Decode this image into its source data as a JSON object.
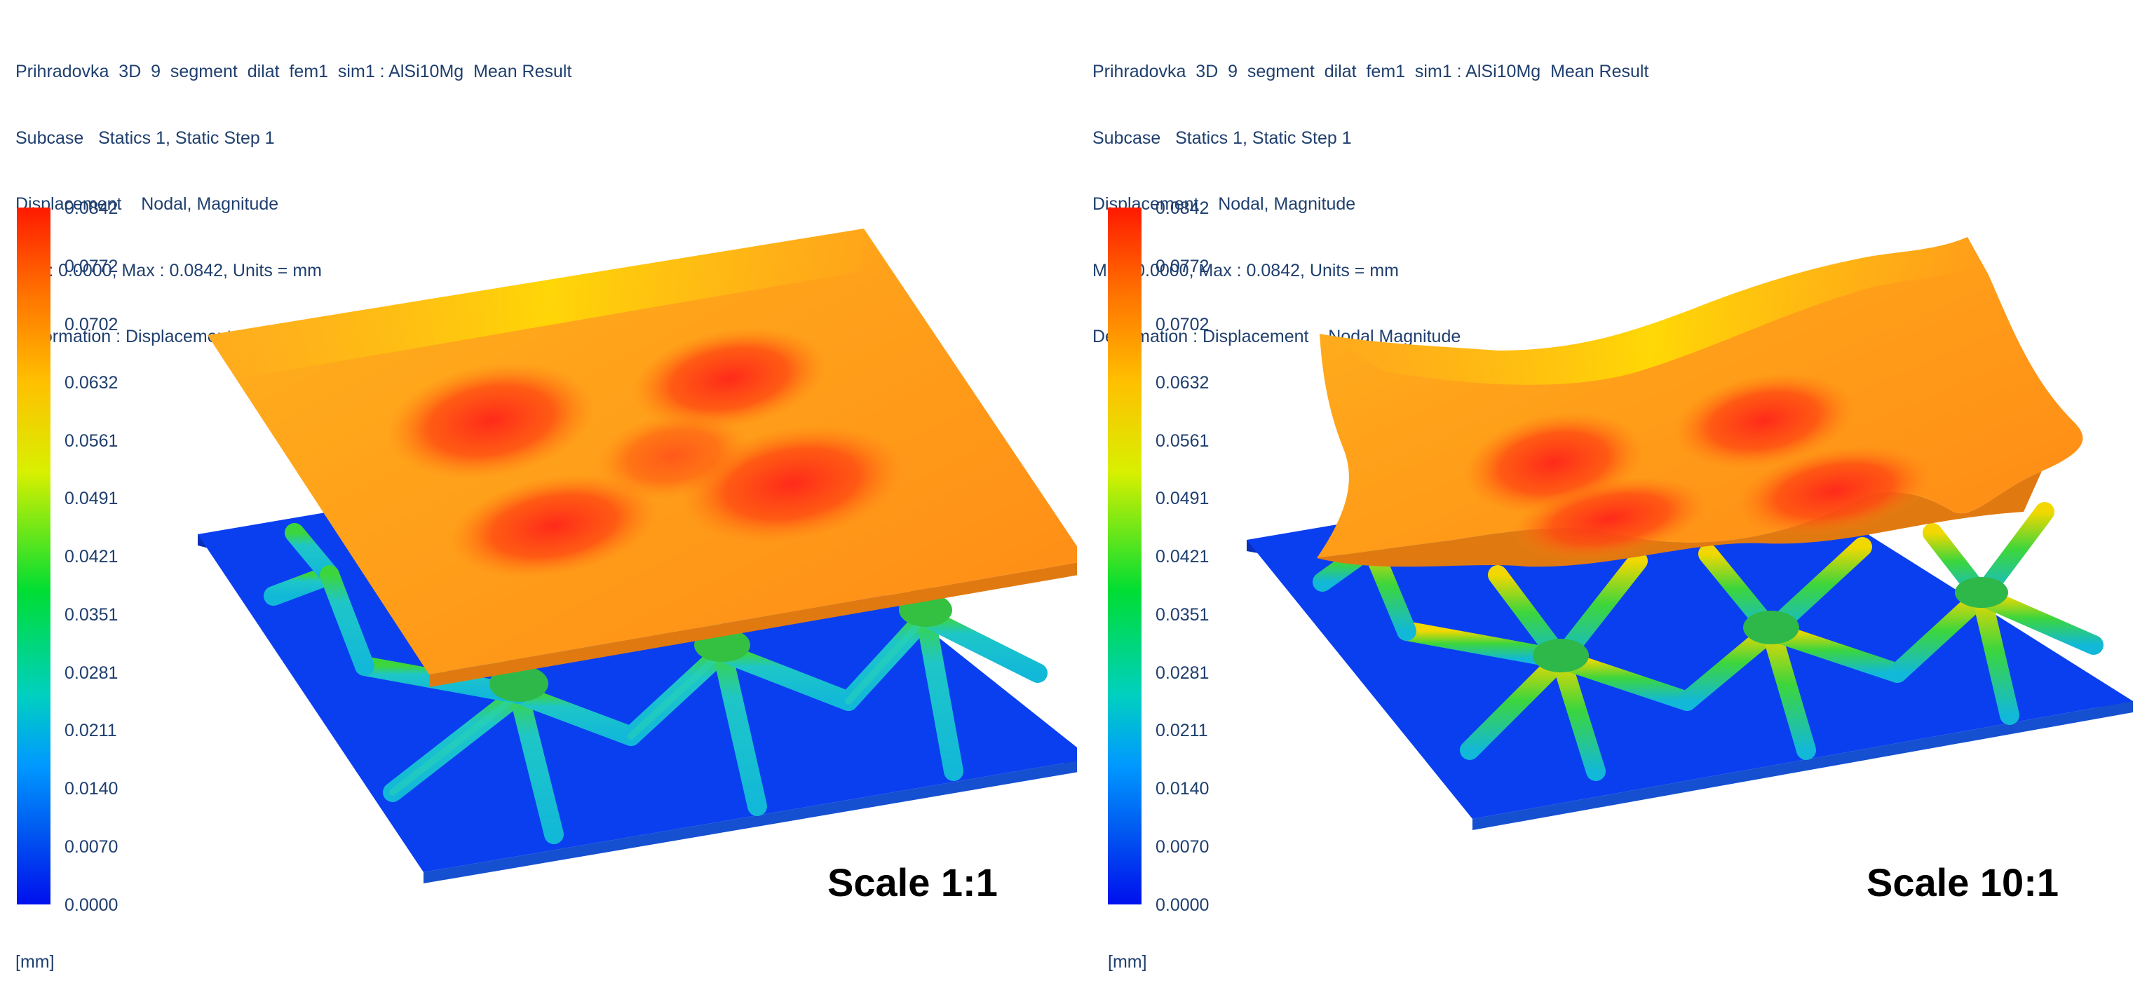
{
  "panels": [
    {
      "header_lines": [
        "Prihradovka  3D  9  segment  dilat  fem1  sim1 : AlSi10Mg  Mean Result",
        "Subcase   Statics 1, Static Step 1",
        "Displacement    Nodal, Magnitude",
        "Min : 0.0000, Max : 0.0842, Units = mm",
        "Deformation : Displacement    Nodal Magnitude"
      ],
      "legend_values": [
        "0.0842",
        "0.0772",
        "0.0702",
        "0.0632",
        "0.0561",
        "0.0491",
        "0.0421",
        "0.0351",
        "0.0281",
        "0.0211",
        "0.0140",
        "0.0070",
        "0.0000"
      ],
      "units_label": "[mm]",
      "scale_label": "Scale 1:1"
    },
    {
      "header_lines": [
        "Prihradovka  3D  9  segment  dilat  fem1  sim1 : AlSi10Mg  Mean Result",
        "Subcase   Statics 1, Static Step 1",
        "Displacement    Nodal, Magnitude",
        "Min : 0.0000, Max : 0.0842, Units = mm",
        "Deformation : Displacement    Nodal Magnitude"
      ],
      "legend_values": [
        "0.0842",
        "0.0772",
        "0.0702",
        "0.0632",
        "0.0561",
        "0.0491",
        "0.0421",
        "0.0351",
        "0.0281",
        "0.0211",
        "0.0140",
        "0.0070",
        "0.0000"
      ],
      "units_label": "[mm]",
      "scale_label": "Scale 10:1"
    }
  ],
  "colors": {
    "text": "#1f3f6e",
    "base_plate": "#0a3ff0",
    "strut_low": "#12b8d8",
    "strut_mid": "#3cd63c",
    "top_plate": "#ffa41a",
    "hot_spot": "#ff2a1a"
  }
}
